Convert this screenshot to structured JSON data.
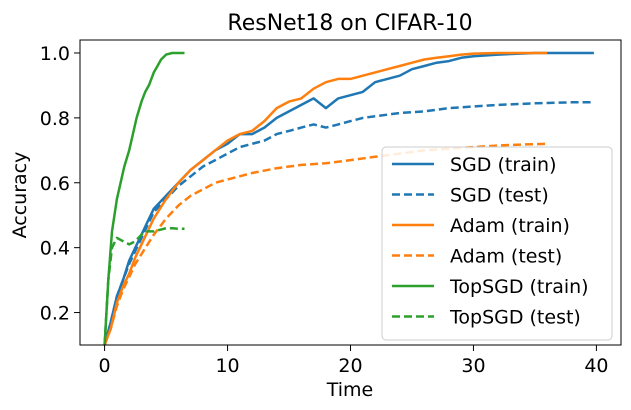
{
  "chart_data": {
    "type": "line",
    "title": "ResNet18 on CIFAR-10",
    "xlabel": "Time",
    "ylabel": "Accuracy",
    "xlim": [
      -2,
      42
    ],
    "ylim": [
      0.1,
      1.04
    ],
    "xticks": [
      0,
      10,
      20,
      30,
      40
    ],
    "yticks": [
      0.2,
      0.4,
      0.6,
      0.8,
      1.0
    ],
    "xtick_labels": [
      "0",
      "10",
      "20",
      "30",
      "40"
    ],
    "ytick_labels": [
      "0.2",
      "0.4",
      "0.6",
      "0.8",
      "1.0"
    ],
    "legend_position": "lower-right",
    "series": [
      {
        "name": "SGD (train)",
        "color": "#1f77b4",
        "dash": "solid",
        "x": [
          0,
          0.5,
          1,
          1.5,
          2,
          2.5,
          3,
          3.5,
          4,
          5,
          6,
          7,
          8,
          9,
          10,
          11,
          12,
          13,
          14,
          15,
          16,
          17,
          18,
          19,
          20,
          21,
          22,
          23,
          24,
          25,
          26,
          27,
          28,
          29,
          30,
          32,
          35,
          38,
          39.8
        ],
        "y": [
          0.1,
          0.17,
          0.25,
          0.3,
          0.36,
          0.4,
          0.44,
          0.48,
          0.52,
          0.56,
          0.6,
          0.64,
          0.67,
          0.7,
          0.72,
          0.75,
          0.75,
          0.77,
          0.8,
          0.82,
          0.84,
          0.86,
          0.83,
          0.86,
          0.87,
          0.88,
          0.91,
          0.92,
          0.93,
          0.95,
          0.96,
          0.97,
          0.975,
          0.985,
          0.99,
          0.995,
          1.0,
          1.0,
          1.0
        ]
      },
      {
        "name": "SGD (test)",
        "color": "#1f77b4",
        "dash": "dashed",
        "x": [
          0,
          0.5,
          1,
          1.5,
          2,
          2.5,
          3,
          3.5,
          4,
          5,
          6,
          7,
          8,
          9,
          10,
          11,
          12,
          13,
          14,
          15,
          16,
          17,
          18,
          19,
          20,
          21,
          22,
          24,
          26,
          28,
          30,
          32,
          35,
          38,
          39.8
        ],
        "y": [
          0.1,
          0.17,
          0.25,
          0.3,
          0.35,
          0.39,
          0.43,
          0.47,
          0.51,
          0.55,
          0.59,
          0.62,
          0.65,
          0.67,
          0.69,
          0.71,
          0.72,
          0.73,
          0.75,
          0.76,
          0.77,
          0.78,
          0.77,
          0.78,
          0.79,
          0.8,
          0.805,
          0.815,
          0.82,
          0.83,
          0.835,
          0.84,
          0.845,
          0.848,
          0.848
        ]
      },
      {
        "name": "Adam (train)",
        "color": "#ff7f0e",
        "dash": "solid",
        "x": [
          0,
          0.5,
          1,
          1.5,
          2,
          2.5,
          3,
          3.5,
          4,
          5,
          6,
          7,
          8,
          9,
          10,
          11,
          12,
          13,
          14,
          15,
          16,
          17,
          18,
          19,
          20,
          21,
          22,
          23,
          24,
          25,
          26,
          27,
          28,
          29,
          30,
          32,
          34,
          36
        ],
        "y": [
          0.1,
          0.15,
          0.23,
          0.28,
          0.32,
          0.37,
          0.41,
          0.45,
          0.49,
          0.55,
          0.6,
          0.64,
          0.67,
          0.7,
          0.73,
          0.75,
          0.76,
          0.79,
          0.83,
          0.85,
          0.86,
          0.89,
          0.91,
          0.92,
          0.92,
          0.93,
          0.94,
          0.95,
          0.96,
          0.97,
          0.98,
          0.985,
          0.99,
          0.995,
          0.998,
          1.0,
          1.0,
          1.0
        ]
      },
      {
        "name": "Adam (test)",
        "color": "#ff7f0e",
        "dash": "dashed",
        "x": [
          0,
          0.5,
          1,
          1.5,
          2,
          2.5,
          3,
          3.5,
          4,
          5,
          6,
          7,
          8,
          9,
          10,
          12,
          14,
          16,
          18,
          20,
          22,
          24,
          26,
          28,
          30,
          32,
          34,
          36
        ],
        "y": [
          0.1,
          0.15,
          0.22,
          0.27,
          0.31,
          0.35,
          0.38,
          0.41,
          0.44,
          0.49,
          0.53,
          0.56,
          0.58,
          0.6,
          0.61,
          0.63,
          0.645,
          0.655,
          0.66,
          0.67,
          0.68,
          0.69,
          0.7,
          0.705,
          0.71,
          0.715,
          0.718,
          0.72
        ]
      },
      {
        "name": "TopSGD (train)",
        "color": "#2ca02c",
        "dash": "solid",
        "x": [
          0,
          0.3,
          0.6,
          1,
          1.3,
          1.6,
          2,
          2.3,
          2.6,
          3,
          3.3,
          3.6,
          4,
          4.3,
          4.6,
          5,
          5.5,
          6,
          6.5
        ],
        "y": [
          0.1,
          0.3,
          0.45,
          0.55,
          0.6,
          0.65,
          0.7,
          0.75,
          0.8,
          0.85,
          0.88,
          0.9,
          0.94,
          0.96,
          0.98,
          0.995,
          1.0,
          1.0,
          1.0
        ]
      },
      {
        "name": "TopSGD (test)",
        "color": "#2ca02c",
        "dash": "dashed",
        "x": [
          0,
          0.3,
          0.6,
          1,
          1.5,
          2,
          2.5,
          3,
          3.5,
          4,
          4.5,
          5,
          5.5,
          6,
          6.5
        ],
        "y": [
          0.1,
          0.3,
          0.4,
          0.43,
          0.42,
          0.41,
          0.42,
          0.44,
          0.45,
          0.45,
          0.455,
          0.46,
          0.46,
          0.458,
          0.458
        ]
      }
    ]
  }
}
